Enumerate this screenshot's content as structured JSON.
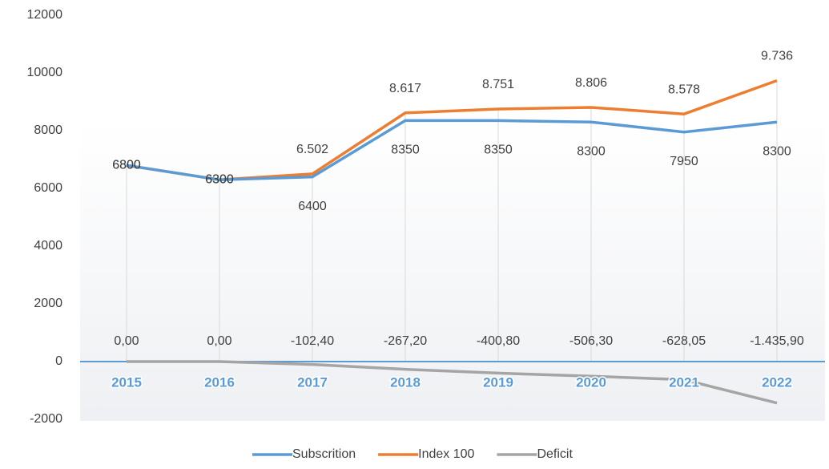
{
  "chart_data": {
    "type": "line",
    "categories": [
      "2015",
      "2016",
      "2017",
      "2018",
      "2019",
      "2020",
      "2021",
      "2022"
    ],
    "series": [
      {
        "name": "Subscrition",
        "color": "#5b9bd5",
        "values": [
          6800,
          6300,
          6400,
          8350,
          8350,
          8300,
          7950,
          8300
        ]
      },
      {
        "name": "Index 100",
        "color": "#ed7d31",
        "values": [
          6800,
          6300,
          6502,
          8617,
          8751,
          8806,
          8578,
          9736
        ],
        "value_labels": [
          "6800",
          "6300",
          "6.502",
          "8.617",
          "8.751",
          "8.806",
          "8.578",
          "9.736"
        ]
      },
      {
        "name": "Deficit",
        "color": "#a5a5a5",
        "values": [
          0,
          0,
          -102.4,
          -267.2,
          -400.8,
          -506.3,
          -628.05,
          -1435.9
        ],
        "value_labels": [
          "0,00",
          "0,00",
          "-102,40",
          "-267,20",
          "-400,80",
          "-506,30",
          "-628,05",
          "-1.435,90"
        ]
      }
    ],
    "ylim": [
      -2000,
      12000
    ],
    "yticks": [
      -2000,
      0,
      2000,
      4000,
      6000,
      8000,
      10000,
      12000
    ],
    "legend": "bottom"
  }
}
